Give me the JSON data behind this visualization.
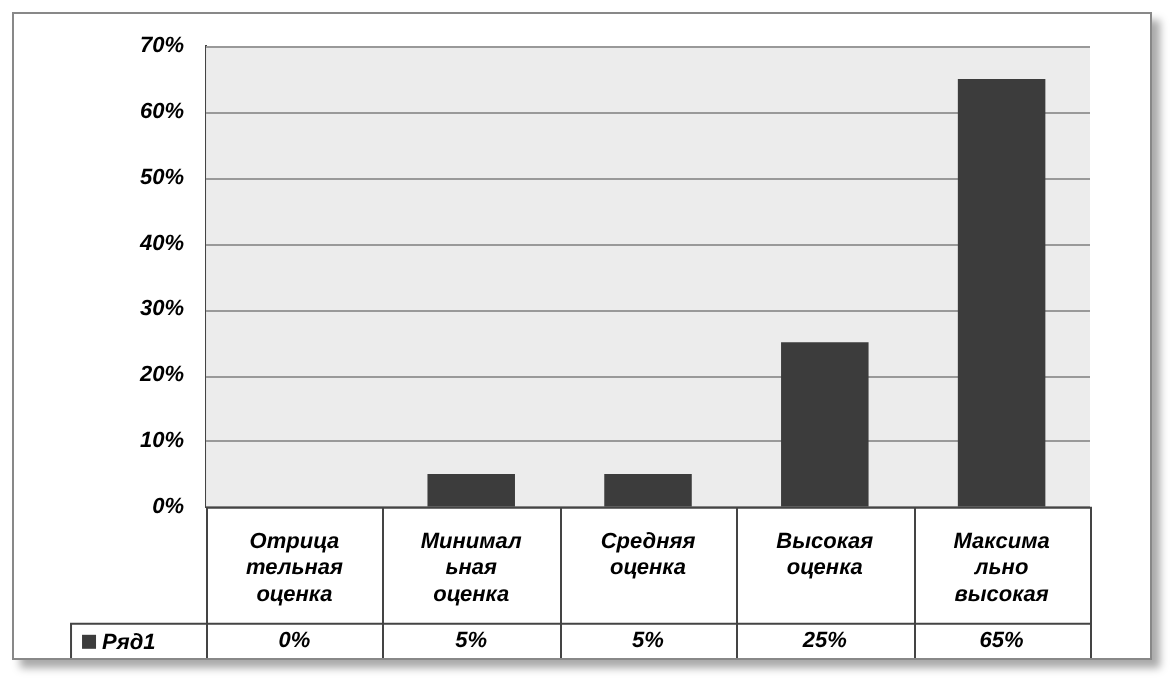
{
  "chart_data": {
    "type": "bar",
    "categories": [
      "Отрица\nтельная\nоценка",
      "Минимал\nьная\nоценка",
      "Средняя\nоценка",
      "Высокая\nоценка",
      "Максима\nльно\nвысокая"
    ],
    "series": [
      {
        "name": "Ряд1",
        "color": "#3c3c3c",
        "values": [
          0,
          5,
          5,
          25,
          65
        ],
        "value_labels": [
          "0%",
          "5%",
          "5%",
          "25%",
          "65%"
        ]
      }
    ],
    "ylim": [
      0,
      70
    ],
    "yticks": [
      {
        "value": 0,
        "label": "0%"
      },
      {
        "value": 10,
        "label": "10%"
      },
      {
        "value": 20,
        "label": "20%"
      },
      {
        "value": 30,
        "label": "30%"
      },
      {
        "value": 40,
        "label": "40%"
      },
      {
        "value": 50,
        "label": "50%"
      },
      {
        "value": 60,
        "label": "60%"
      },
      {
        "value": 70,
        "label": "70%"
      }
    ],
    "grid": "y",
    "legend": "bottom left"
  }
}
